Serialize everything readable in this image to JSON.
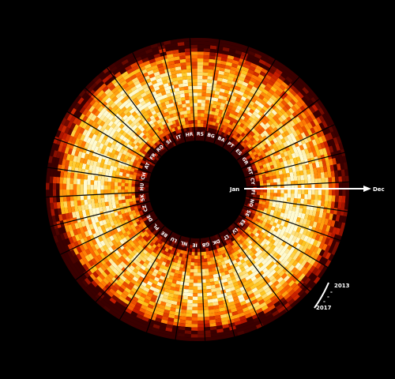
{
  "chart_data": {
    "type": "heatmap",
    "layout": "radial",
    "description_axis_angle": "time of year, clockwise from Jan (3 o'clock) to Dec",
    "description_axis_radius": "year, outer 2013 to inner 2017",
    "countries": [
      "CY",
      "MT",
      "GR",
      "ES",
      "PT",
      "BA",
      "BG",
      "RS",
      "HR",
      "IT",
      "SI",
      "RO",
      "FR",
      "AT",
      "CH",
      "HU",
      "SK",
      "CZ",
      "DE",
      "PL",
      "BE",
      "LU",
      "NL",
      "IE",
      "GB",
      "DK",
      "LT",
      "LV",
      "EE",
      "SE",
      "NO",
      "FI"
    ],
    "time_axis": {
      "start_label": "Jan",
      "end_label": "Dec"
    },
    "year_axis": {
      "outer_label": "2013",
      "inner_label": "2017"
    },
    "value_scale": "relative activity: low (dark red) to high (pale yellow)",
    "colors": {
      "background": "#000000",
      "low": "#3a0000",
      "mid_low": "#c41a00",
      "mid": "#ff6a00",
      "mid_high": "#ffc31a",
      "high": "#fffad0",
      "divider": "#000000",
      "label": "#ffffff"
    }
  }
}
